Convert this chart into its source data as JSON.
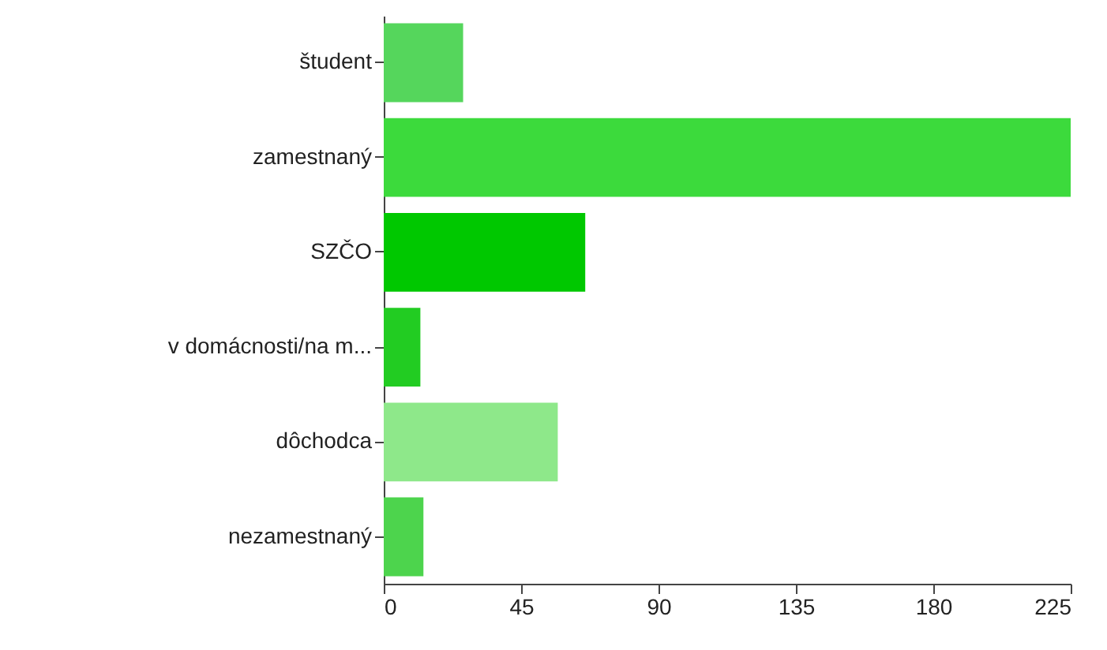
{
  "chart_data": {
    "type": "bar",
    "orientation": "horizontal",
    "categories": [
      "študent",
      "zamestnaný",
      "SZČO",
      "v domácnosti/na m...",
      "dôchodca",
      "nezamestnaný"
    ],
    "values": [
      26,
      225,
      66,
      12,
      57,
      13
    ],
    "colors": [
      "#55d65c",
      "#3cda3c",
      "#00c800",
      "#22cc22",
      "#8ee88a",
      "#4dd44d"
    ],
    "xlim": [
      0,
      225
    ],
    "xticks": [
      0,
      45,
      90,
      135,
      180,
      225
    ],
    "grid": false
  }
}
